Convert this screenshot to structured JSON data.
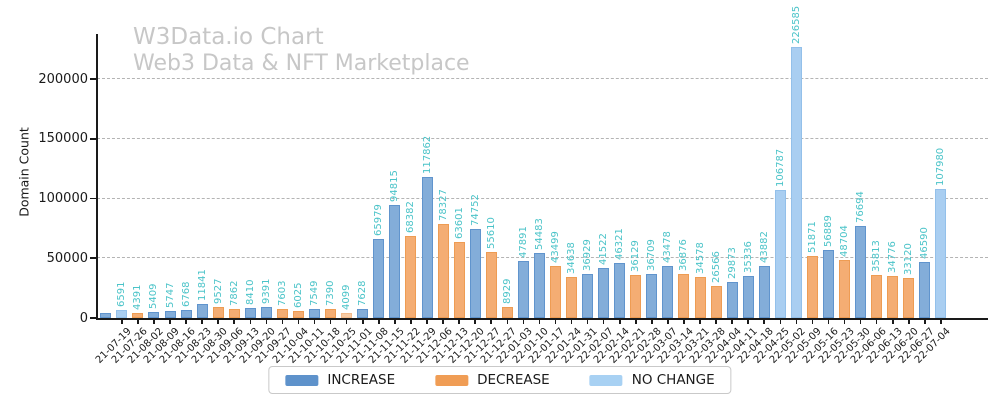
{
  "header": {
    "title": "W3Data.io Chart",
    "subtitle": "Web3 Data & NFT Marketplace"
  },
  "chart_data": {
    "type": "bar",
    "title": "W3Data.io Chart",
    "subtitle": "Web3 Data & NFT Marketplace",
    "xlabel": "",
    "ylabel": "Domain Count",
    "y_ticks": [
      0,
      50000,
      100000,
      150000,
      200000
    ],
    "ylim": [
      0,
      238500
    ],
    "grid": "horizontal-dashed",
    "legend_position": "bottom-center",
    "value_label_color": "#4ac3c8",
    "colors": {
      "increase": {
        "fill": "#83add9",
        "edge": "#6094cd"
      },
      "decrease": {
        "fill": "#f4ad73",
        "edge": "#ee9c53"
      },
      "no_change": {
        "fill": "#a9cef1",
        "edge": "#93c0ea"
      },
      "decrease_light": {
        "fill": "#f8cba4",
        "edge": "#f3ba8b"
      }
    },
    "legend": [
      {
        "label": "INCREASE",
        "color": "#5e92cb"
      },
      {
        "label": "DECREASE",
        "color": "#f09d55"
      },
      {
        "label": "NO CHANGE",
        "color": "#a8d1f3"
      }
    ],
    "bars": [
      {
        "date": "",
        "value": 3900,
        "type": "increase",
        "label": ""
      },
      {
        "date": "21-07-19",
        "value": 6591,
        "type": "no_change",
        "label": "6591"
      },
      {
        "date": "21-07-26",
        "value": 4391,
        "type": "decrease",
        "label": "4391"
      },
      {
        "date": "21-08-02",
        "value": 5409,
        "type": "increase",
        "label": "5409"
      },
      {
        "date": "21-08-09",
        "value": 5747,
        "type": "increase",
        "label": "5747"
      },
      {
        "date": "21-08-16",
        "value": 6768,
        "type": "increase",
        "label": "6768"
      },
      {
        "date": "21-08-23",
        "value": 11841,
        "type": "increase",
        "label": "11841"
      },
      {
        "date": "21-08-30",
        "value": 9527,
        "type": "decrease",
        "label": "9527"
      },
      {
        "date": "21-09-06",
        "value": 7862,
        "type": "decrease",
        "label": "7862"
      },
      {
        "date": "21-09-13",
        "value": 8410,
        "type": "increase",
        "label": "8410"
      },
      {
        "date": "21-09-20",
        "value": 9391,
        "type": "increase",
        "label": "9391"
      },
      {
        "date": "21-09-27",
        "value": 7603,
        "type": "decrease",
        "label": "7603"
      },
      {
        "date": "21-10-04",
        "value": 6025,
        "type": "decrease",
        "label": "6025"
      },
      {
        "date": "21-10-11",
        "value": 7549,
        "type": "increase",
        "label": "7549"
      },
      {
        "date": "21-10-18",
        "value": 7390,
        "type": "decrease",
        "label": "7390"
      },
      {
        "date": "21-10-25",
        "value": 4099,
        "type": "decrease_light",
        "label": "4099"
      },
      {
        "date": "21-11-01",
        "value": 7628,
        "type": "increase",
        "label": "7628"
      },
      {
        "date": "21-11-08",
        "value": 65979,
        "type": "increase",
        "label": "65979"
      },
      {
        "date": "21-11-15",
        "value": 94815,
        "type": "increase",
        "label": "94815"
      },
      {
        "date": "21-11-22",
        "value": 68382,
        "type": "decrease",
        "label": "68382"
      },
      {
        "date": "21-11-29",
        "value": 117862,
        "type": "increase",
        "label": "117862"
      },
      {
        "date": "21-12-06",
        "value": 78327,
        "type": "decrease",
        "label": "78327"
      },
      {
        "date": "21-12-13",
        "value": 63601,
        "type": "decrease",
        "label": "63601"
      },
      {
        "date": "21-12-20",
        "value": 74752,
        "type": "increase",
        "label": "74752"
      },
      {
        "date": "21-12-27",
        "value": 55610,
        "type": "decrease",
        "label": "55610"
      },
      {
        "date": "21-12-27",
        "value": 8929,
        "type": "decrease",
        "label": "8929"
      },
      {
        "date": "22-01-03",
        "value": 47891,
        "type": "increase",
        "label": "47891"
      },
      {
        "date": "22-01-10",
        "value": 54483,
        "type": "increase",
        "label": "54483"
      },
      {
        "date": "22-01-17",
        "value": 43499,
        "type": "decrease",
        "label": "43499"
      },
      {
        "date": "22-01-24",
        "value": 34638,
        "type": "decrease",
        "label": "34638"
      },
      {
        "date": "22-01-31",
        "value": 36929,
        "type": "increase",
        "label": "36929"
      },
      {
        "date": "22-02-07",
        "value": 41522,
        "type": "increase",
        "label": "41522"
      },
      {
        "date": "22-02-14",
        "value": 46321,
        "type": "increase",
        "label": "46321"
      },
      {
        "date": "22-02-21",
        "value": 36129,
        "type": "decrease",
        "label": "36129"
      },
      {
        "date": "22-02-28",
        "value": 36709,
        "type": "increase",
        "label": "36709"
      },
      {
        "date": "22-03-07",
        "value": 43478,
        "type": "increase",
        "label": "43478"
      },
      {
        "date": "22-03-14",
        "value": 36876,
        "type": "decrease",
        "label": "36876"
      },
      {
        "date": "22-03-21",
        "value": 34578,
        "type": "decrease",
        "label": "34578"
      },
      {
        "date": "22-03-28",
        "value": 26566,
        "type": "decrease",
        "label": "26566"
      },
      {
        "date": "22-04-04",
        "value": 29873,
        "type": "increase",
        "label": "29873"
      },
      {
        "date": "22-04-11",
        "value": 35336,
        "type": "increase",
        "label": "35336"
      },
      {
        "date": "22-04-18",
        "value": 43882,
        "type": "increase",
        "label": "43882"
      },
      {
        "date": "22-04-25",
        "value": 106787,
        "type": "no_change",
        "label": "106787"
      },
      {
        "date": "22-05-02",
        "value": 226585,
        "type": "no_change",
        "label": "226585"
      },
      {
        "date": "22-05-09",
        "value": 51871,
        "type": "decrease",
        "label": "51871"
      },
      {
        "date": "22-05-16",
        "value": 56889,
        "type": "increase",
        "label": "56889"
      },
      {
        "date": "22-05-23",
        "value": 48704,
        "type": "decrease",
        "label": "48704"
      },
      {
        "date": "22-05-30",
        "value": 76694,
        "type": "increase",
        "label": "76694"
      },
      {
        "date": "22-06-06",
        "value": 35813,
        "type": "decrease",
        "label": "35813"
      },
      {
        "date": "22-06-13",
        "value": 34776,
        "type": "decrease",
        "label": "34776"
      },
      {
        "date": "22-06-20",
        "value": 33120,
        "type": "decrease",
        "label": "33120"
      },
      {
        "date": "22-06-27",
        "value": 46590,
        "type": "increase",
        "label": "46590"
      },
      {
        "date": "22-07-04",
        "value": 107980,
        "type": "no_change",
        "label": "107980"
      }
    ]
  }
}
